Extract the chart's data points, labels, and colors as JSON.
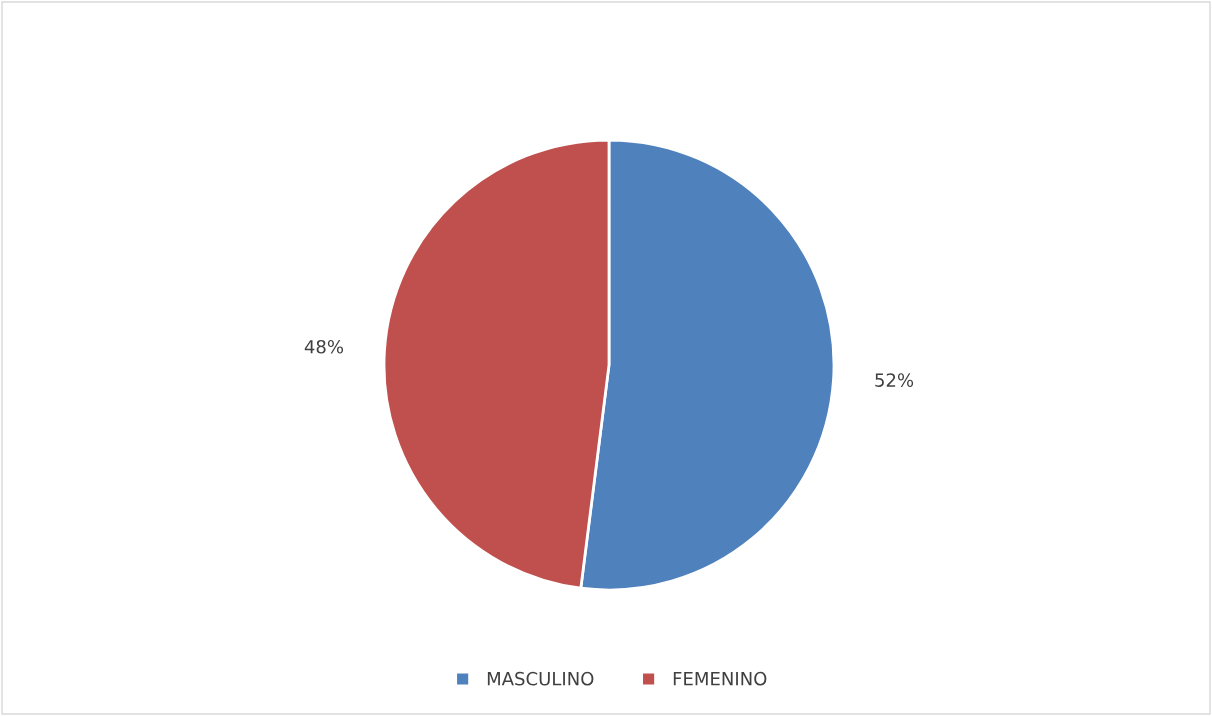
{
  "chart_data": {
    "type": "pie",
    "categories": [
      "MASCULINO",
      "FEMENINO"
    ],
    "values": [
      52,
      48
    ],
    "colors": [
      "#4f81bd",
      "#c0504d"
    ],
    "value_labels": [
      "52%",
      "48%"
    ],
    "legend": "bottom"
  }
}
